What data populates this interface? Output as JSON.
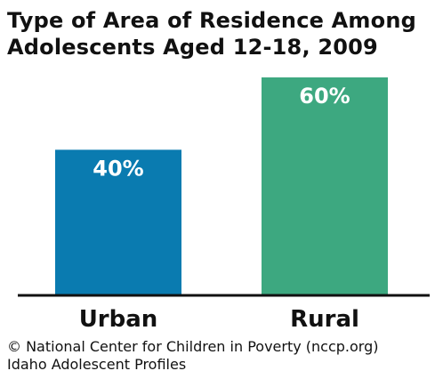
{
  "title_lines": [
    "Type of Area of Residence Among",
    "Adolescents Aged 12-18, 2009"
  ],
  "footer": {
    "copyright": "© National Center for Children in Poverty (nccp.org)",
    "source": "Idaho Adolescent Profiles"
  },
  "chart_data": {
    "type": "bar",
    "title": "Type of Area of Residence Among Adolescents Aged 12-18, 2009",
    "categories": [
      "Urban",
      "Rural"
    ],
    "values": [
      40,
      60
    ],
    "value_labels": [
      "40%",
      "60%"
    ],
    "colors": [
      "#0a7bb0",
      "#3da880"
    ],
    "ylim": [
      0,
      60
    ],
    "xlabel": "",
    "ylabel": "",
    "grid": false,
    "legend": "none"
  }
}
